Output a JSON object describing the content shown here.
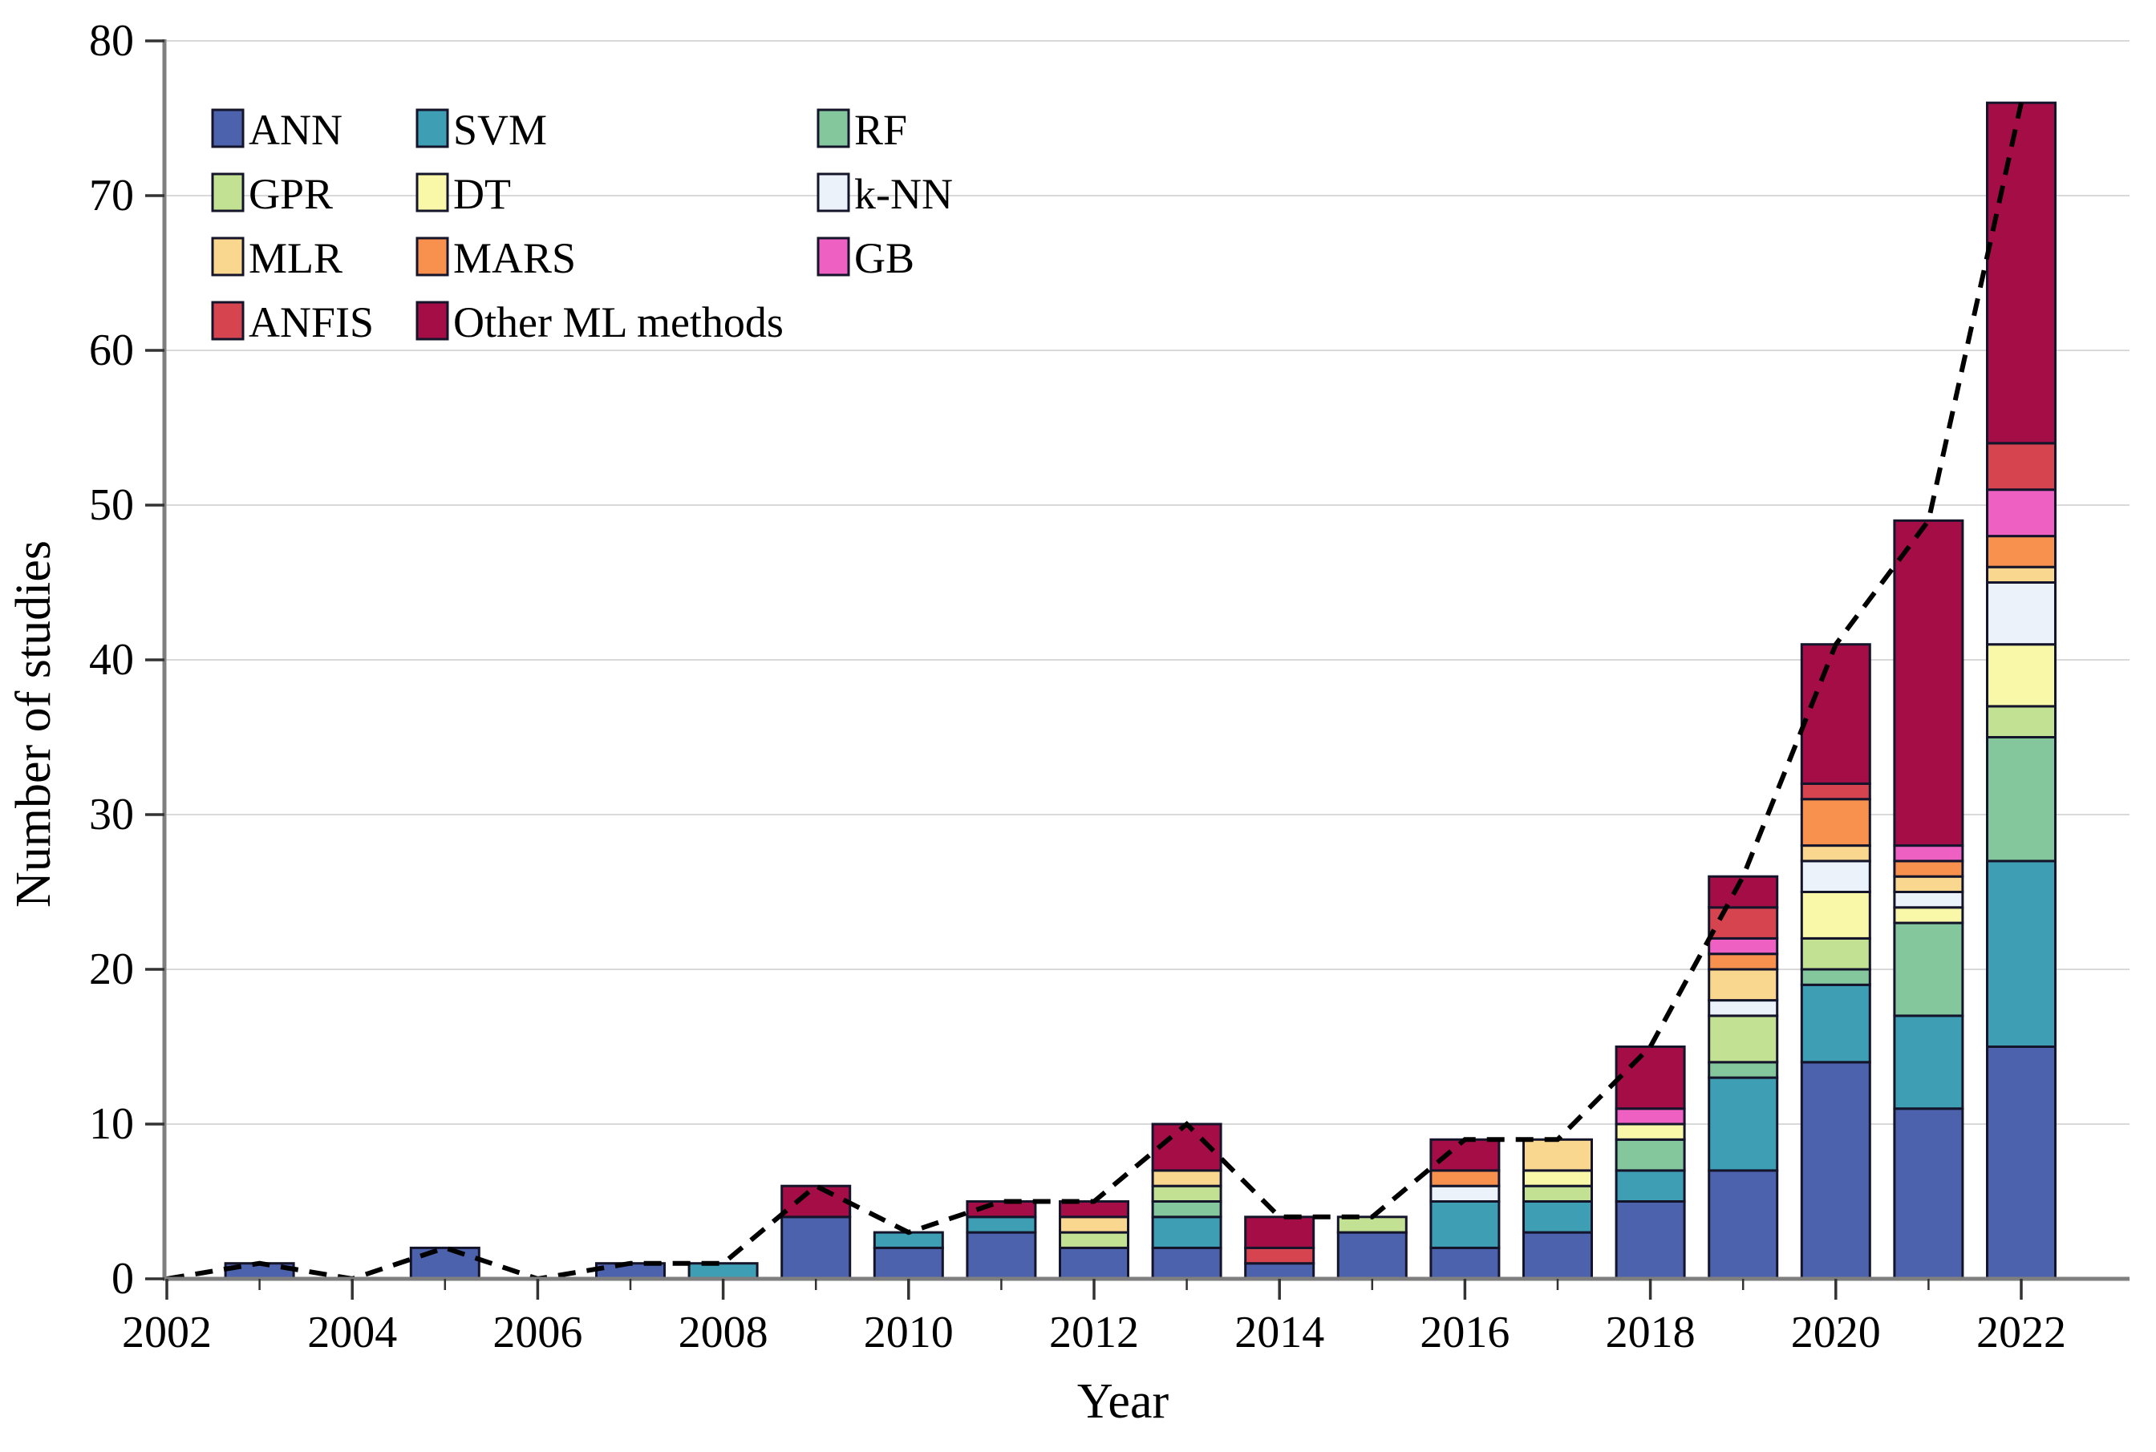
{
  "figure": {
    "kind": "stacked bar chart of machine-learning study counts per year with dashed trend line"
  },
  "chart_data": {
    "type": "bar",
    "stacked": true,
    "title": "",
    "xlabel": "Year",
    "ylabel": "Number of studies",
    "ylim": [
      0,
      80
    ],
    "y_ticks": [
      0,
      10,
      20,
      30,
      40,
      50,
      60,
      70,
      80
    ],
    "x_major_ticks": [
      2002,
      2004,
      2006,
      2008,
      2010,
      2012,
      2014,
      2016,
      2018,
      2020,
      2022
    ],
    "x_minor_ticks": [
      2003,
      2005,
      2007,
      2009,
      2011,
      2013,
      2015,
      2017,
      2019,
      2021
    ],
    "grid": true,
    "legend_position": "upper-left",
    "legend_order": [
      "ANN",
      "SVM",
      "RF",
      "GPR",
      "DT",
      "k-NN",
      "MLR",
      "MARS",
      "GB",
      "ANFIS",
      "Other ML methods"
    ],
    "categories": [
      2003,
      2004,
      2005,
      2006,
      2007,
      2008,
      2009,
      2010,
      2011,
      2012,
      2013,
      2014,
      2015,
      2016,
      2017,
      2018,
      2019,
      2020,
      2021,
      2022
    ],
    "series": [
      {
        "name": "ANN",
        "color": "#4D62AC",
        "values": [
          1,
          0,
          2,
          0,
          1,
          0,
          4,
          2,
          3,
          2,
          2,
          1,
          3,
          2,
          3,
          5,
          7,
          14,
          11,
          15
        ]
      },
      {
        "name": "SVM",
        "color": "#3E9EB4",
        "values": [
          0,
          0,
          0,
          0,
          0,
          1,
          0,
          1,
          1,
          0,
          2,
          0,
          0,
          3,
          2,
          2,
          6,
          5,
          6,
          12
        ]
      },
      {
        "name": "RF",
        "color": "#85C79C",
        "values": [
          0,
          0,
          0,
          0,
          0,
          0,
          0,
          0,
          0,
          0,
          1,
          0,
          0,
          0,
          0,
          2,
          1,
          1,
          6,
          8
        ]
      },
      {
        "name": "GPR",
        "color": "#C3E193",
        "values": [
          0,
          0,
          0,
          0,
          0,
          0,
          0,
          0,
          0,
          1,
          1,
          0,
          1,
          0,
          1,
          0,
          3,
          2,
          0,
          2
        ]
      },
      {
        "name": "DT",
        "color": "#F9F8A9",
        "values": [
          0,
          0,
          0,
          0,
          0,
          0,
          0,
          0,
          0,
          0,
          0,
          0,
          0,
          0,
          1,
          1,
          0,
          3,
          1,
          4
        ]
      },
      {
        "name": "k-NN",
        "color": "#ECF2F9",
        "values": [
          0,
          0,
          0,
          0,
          0,
          0,
          0,
          0,
          0,
          0,
          0,
          0,
          0,
          1,
          0,
          0,
          1,
          2,
          1,
          4
        ]
      },
      {
        "name": "MLR",
        "color": "#FAD78E",
        "values": [
          0,
          0,
          0,
          0,
          0,
          0,
          0,
          0,
          0,
          1,
          1,
          0,
          0,
          0,
          2,
          0,
          2,
          1,
          1,
          1
        ]
      },
      {
        "name": "MARS",
        "color": "#F8914E",
        "values": [
          0,
          0,
          0,
          0,
          0,
          0,
          0,
          0,
          0,
          0,
          0,
          0,
          0,
          1,
          0,
          0,
          1,
          3,
          1,
          2
        ]
      },
      {
        "name": "GB",
        "color": "#EE61C2",
        "values": [
          0,
          0,
          0,
          0,
          0,
          0,
          0,
          0,
          0,
          0,
          0,
          0,
          0,
          0,
          0,
          1,
          1,
          0,
          1,
          3
        ]
      },
      {
        "name": "ANFIS",
        "color": "#D64450",
        "values": [
          0,
          0,
          0,
          0,
          0,
          0,
          0,
          0,
          0,
          0,
          0,
          1,
          0,
          0,
          0,
          0,
          2,
          1,
          0,
          3
        ]
      },
      {
        "name": "Other ML methods",
        "color": "#A40D45",
        "values": [
          0,
          0,
          0,
          0,
          0,
          0,
          2,
          0,
          1,
          1,
          3,
          2,
          0,
          2,
          0,
          4,
          2,
          9,
          21,
          22
        ]
      }
    ],
    "totals_by_year": {
      "x": [
        2002,
        2003,
        2004,
        2005,
        2006,
        2007,
        2008,
        2009,
        2010,
        2011,
        2012,
        2013,
        2014,
        2015,
        2016,
        2017,
        2018,
        2019,
        2020,
        2021,
        2022
      ],
      "y": [
        0,
        1,
        0,
        2,
        0,
        1,
        1,
        6,
        3,
        5,
        5,
        10,
        4,
        4,
        9,
        9,
        15,
        26,
        41,
        49,
        76
      ]
    },
    "trend_line": {
      "style": "dashed",
      "color": "#000000"
    },
    "colors": {
      "axis_line": "#7f7f7f",
      "tick": "#333333",
      "gridline": "#d9d9d9",
      "bar_outline": "#14142b",
      "text": "#000000"
    }
  }
}
